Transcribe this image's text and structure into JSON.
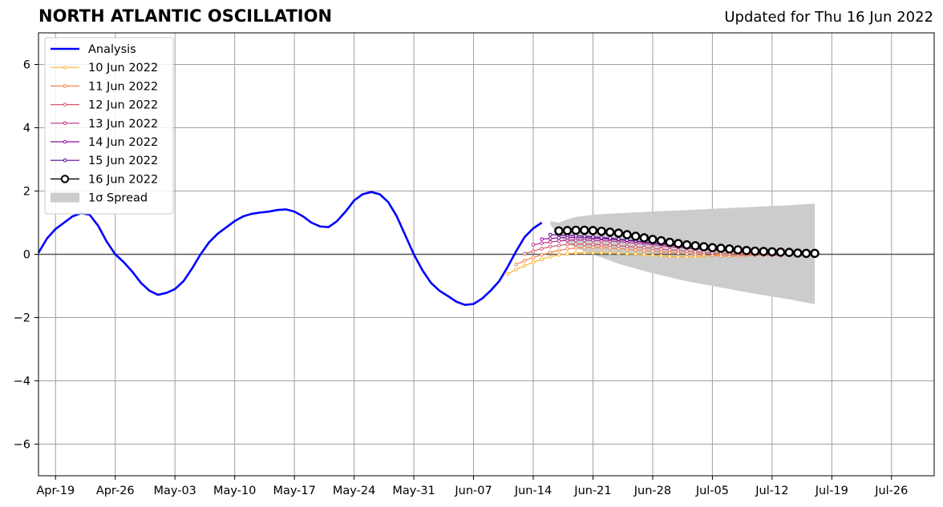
{
  "header": {
    "title": "NORTH ATLANTIC OSCILLATION",
    "updated": "Updated for Thu 16 Jun 2022"
  },
  "chart_data": {
    "type": "line",
    "x_tick_labels": [
      "Apr-19",
      "Apr-26",
      "May-03",
      "May-10",
      "May-17",
      "May-24",
      "May-31",
      "Jun-07",
      "Jun-14",
      "Jun-21",
      "Jun-28",
      "Jul-05",
      "Jul-12",
      "Jul-19",
      "Jul-26"
    ],
    "y_ticks": [
      -6,
      -4,
      -2,
      0,
      2,
      4,
      6
    ],
    "y_tick_labels": [
      "−6",
      "−4",
      "−2",
      "0",
      "2",
      "4",
      "6"
    ],
    "xlim": [
      "2022-04-17",
      "2022-07-31"
    ],
    "ylim": [
      -7,
      7
    ],
    "grid": true,
    "legend_position": "upper-left",
    "legend": [
      "Analysis",
      "10 Jun 2022",
      "11 Jun 2022",
      "12 Jun 2022",
      "13 Jun 2022",
      "14 Jun 2022",
      "15 Jun 2022",
      "16 Jun 2022",
      "1σ Spread"
    ],
    "colors": {
      "analysis": "#0000ff",
      "10 Jun 2022": "#fcb433",
      "11 Jun 2022": "#f1844b",
      "12 Jun 2022": "#d6566c",
      "13 Jun 2022": "#b53085",
      "14 Jun 2022": "#8e0ea0",
      "15 Jun 2022": "#5a028f",
      "16 Jun 2022": "#000000",
      "spread": "#cccccc"
    },
    "analysis": {
      "name": "Analysis",
      "x": [
        "2022-04-17",
        "2022-04-18",
        "2022-04-19",
        "2022-04-20",
        "2022-04-21",
        "2022-04-22",
        "2022-04-23",
        "2022-04-24",
        "2022-04-25",
        "2022-04-26",
        "2022-04-27",
        "2022-04-28",
        "2022-04-29",
        "2022-04-30",
        "2022-05-01",
        "2022-05-02",
        "2022-05-03",
        "2022-05-04",
        "2022-05-05",
        "2022-05-06",
        "2022-05-07",
        "2022-05-08",
        "2022-05-09",
        "2022-05-10",
        "2022-05-11",
        "2022-05-12",
        "2022-05-13",
        "2022-05-14",
        "2022-05-15",
        "2022-05-16",
        "2022-05-17",
        "2022-05-18",
        "2022-05-19",
        "2022-05-20",
        "2022-05-21",
        "2022-05-22",
        "2022-05-23",
        "2022-05-24",
        "2022-05-25",
        "2022-05-26",
        "2022-05-27",
        "2022-05-28",
        "2022-05-29",
        "2022-05-30",
        "2022-05-31",
        "2022-06-01",
        "2022-06-02",
        "2022-06-03",
        "2022-06-04",
        "2022-06-05",
        "2022-06-06",
        "2022-06-07",
        "2022-06-08",
        "2022-06-09",
        "2022-06-10",
        "2022-06-11",
        "2022-06-12",
        "2022-06-13",
        "2022-06-14",
        "2022-06-15"
      ],
      "y": [
        0.05,
        0.5,
        0.8,
        1.0,
        1.2,
        1.3,
        1.25,
        0.9,
        0.4,
        0.0,
        -0.25,
        -0.55,
        -0.9,
        -1.15,
        -1.28,
        -1.22,
        -1.1,
        -0.85,
        -0.45,
        0.0,
        0.38,
        0.65,
        0.85,
        1.05,
        1.2,
        1.28,
        1.32,
        1.35,
        1.4,
        1.42,
        1.35,
        1.2,
        1.0,
        0.88,
        0.86,
        1.05,
        1.35,
        1.7,
        1.9,
        1.97,
        1.9,
        1.65,
        1.2,
        0.6,
        0.0,
        -0.5,
        -0.9,
        -1.15,
        -1.32,
        -1.5,
        -1.6,
        -1.57,
        -1.4,
        -1.15,
        -0.85,
        -0.4,
        0.1,
        0.55,
        0.82,
        1.0
      ]
    },
    "forecasts": [
      {
        "name": "10 Jun 2022",
        "x_start": "2022-06-11",
        "y": [
          -0.62,
          -0.48,
          -0.36,
          -0.25,
          -0.16,
          -0.08,
          -0.02,
          0.02,
          0.04,
          0.05,
          0.05,
          0.05,
          0.04,
          0.03,
          0.02,
          0.01,
          -0.01,
          -0.03,
          -0.05,
          -0.07,
          -0.08,
          -0.09,
          -0.08,
          -0.06,
          -0.03,
          0.0,
          0.01,
          0.02,
          0.03,
          0.04,
          0.04
        ]
      },
      {
        "name": "11 Jun 2022",
        "x_start": "2022-06-12",
        "y": [
          -0.32,
          -0.2,
          -0.1,
          -0.02,
          0.06,
          0.12,
          0.17,
          0.2,
          0.21,
          0.22,
          0.21,
          0.2,
          0.18,
          0.16,
          0.14,
          0.12,
          0.1,
          0.08,
          0.06,
          0.04,
          0.02,
          0.0,
          -0.02,
          -0.04,
          -0.05,
          -0.06,
          -0.05,
          -0.04,
          -0.03,
          -0.02,
          -0.01
        ]
      },
      {
        "name": "12 Jun 2022",
        "x_start": "2022-06-13",
        "y": [
          0.02,
          0.1,
          0.18,
          0.24,
          0.28,
          0.31,
          0.32,
          0.32,
          0.31,
          0.3,
          0.29,
          0.27,
          0.25,
          0.23,
          0.21,
          0.19,
          0.16,
          0.14,
          0.12,
          0.1,
          0.08,
          0.06,
          0.04,
          0.03,
          0.02,
          0.01,
          0.0,
          -0.01,
          -0.02,
          -0.03,
          -0.04
        ]
      },
      {
        "name": "13 Jun 2022",
        "x_start": "2022-06-14",
        "y": [
          0.3,
          0.35,
          0.39,
          0.42,
          0.44,
          0.45,
          0.45,
          0.44,
          0.43,
          0.42,
          0.4,
          0.38,
          0.35,
          0.33,
          0.3,
          0.27,
          0.24,
          0.22,
          0.19,
          0.17,
          0.15,
          0.13,
          0.11,
          0.09,
          0.08,
          0.07,
          0.06,
          0.05,
          0.04,
          0.03,
          0.02
        ]
      },
      {
        "name": "14 Jun 2022",
        "x_start": "2022-06-15",
        "y": [
          0.48,
          0.5,
          0.52,
          0.53,
          0.53,
          0.52,
          0.51,
          0.5,
          0.48,
          0.46,
          0.44,
          0.41,
          0.38,
          0.35,
          0.32,
          0.29,
          0.26,
          0.23,
          0.2,
          0.18,
          0.16,
          0.14,
          0.12,
          0.1,
          0.09,
          0.08,
          0.07,
          0.06,
          0.05,
          0.04,
          0.03
        ]
      },
      {
        "name": "15 Jun 2022",
        "x_start": "2022-06-16",
        "y": [
          0.62,
          0.61,
          0.6,
          0.59,
          0.57,
          0.55,
          0.53,
          0.51,
          0.48,
          0.45,
          0.42,
          0.39,
          0.36,
          0.33,
          0.3,
          0.27,
          0.24,
          0.21,
          0.19,
          0.17,
          0.15,
          0.13,
          0.11,
          0.1,
          0.09,
          0.08,
          0.07,
          0.06,
          0.05,
          0.04,
          0.03
        ]
      }
    ],
    "main_forecast": {
      "name": "16 Jun 2022",
      "x_start": "2022-06-17",
      "y": [
        0.74,
        0.75,
        0.76,
        0.76,
        0.75,
        0.73,
        0.7,
        0.67,
        0.62,
        0.57,
        0.52,
        0.47,
        0.43,
        0.38,
        0.34,
        0.3,
        0.27,
        0.24,
        0.21,
        0.19,
        0.17,
        0.14,
        0.12,
        0.1,
        0.09,
        0.08,
        0.07,
        0.06,
        0.04,
        0.03,
        0.03
      ]
    },
    "spread": {
      "name": "1σ Spread",
      "x": [
        "2022-06-16",
        "2022-06-17",
        "2022-06-18",
        "2022-06-19",
        "2022-06-21",
        "2022-06-24",
        "2022-06-28",
        "2022-07-02",
        "2022-07-06",
        "2022-07-10",
        "2022-07-14",
        "2022-07-17"
      ],
      "upper": [
        1.05,
        1.0,
        1.1,
        1.18,
        1.25,
        1.3,
        1.35,
        1.4,
        1.45,
        1.5,
        1.55,
        1.6
      ],
      "lower": [
        0.95,
        0.55,
        0.35,
        0.2,
        0.0,
        -0.3,
        -0.6,
        -0.85,
        -1.05,
        -1.25,
        -1.42,
        -1.58
      ]
    }
  }
}
